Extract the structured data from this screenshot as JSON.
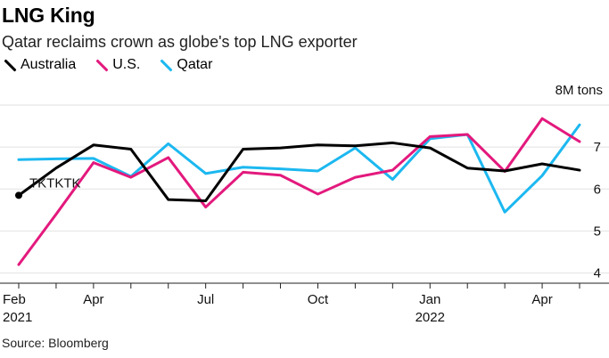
{
  "header": {
    "title": "LNG King",
    "subtitle": "Qatar reclaims crown as globe's top LNG exporter"
  },
  "footer": {
    "source": "Source: Bloomberg"
  },
  "chart_data": {
    "type": "line",
    "title": "LNG King",
    "subtitle": "Qatar reclaims crown as globe's top LNG exporter",
    "xlabel": "",
    "ylabel": "",
    "y_unit_label": "8M tons",
    "ylim": [
      3.8,
      8.0
    ],
    "yticks": [
      4,
      5,
      6,
      7
    ],
    "grid": "horizontal",
    "legend_position": "top-left",
    "x": [
      "2021-02",
      "2021-03",
      "2021-04",
      "2021-05",
      "2021-06",
      "2021-07",
      "2021-08",
      "2021-09",
      "2021-10",
      "2021-11",
      "2021-12",
      "2022-01",
      "2022-02",
      "2022-03",
      "2022-04",
      "2022-05"
    ],
    "xtick_labels": [
      {
        "x": "2021-02",
        "line1": "Feb",
        "line2": "2021"
      },
      {
        "x": "2021-04",
        "line1": "Apr",
        "line2": ""
      },
      {
        "x": "2021-07",
        "line1": "Jul",
        "line2": ""
      },
      {
        "x": "2021-10",
        "line1": "Oct",
        "line2": ""
      },
      {
        "x": "2022-01",
        "line1": "Jan",
        "line2": "2022"
      },
      {
        "x": "2022-04",
        "line1": "Apr",
        "line2": ""
      }
    ],
    "series": [
      {
        "name": "Australia",
        "color": "#000000",
        "start_marker": true,
        "x": [
          "2021-02",
          "2021-03",
          "2021-04",
          "2021-05",
          "2021-06",
          "2021-07",
          "2021-08",
          "2021-09",
          "2021-10",
          "2021-11",
          "2021-12",
          "2022-01",
          "2022-02",
          "2022-03",
          "2022-04",
          "2022-05"
        ],
        "values": [
          5.85,
          6.5,
          7.05,
          6.95,
          5.75,
          5.72,
          6.95,
          6.98,
          7.05,
          7.03,
          7.1,
          6.98,
          6.5,
          6.43,
          6.6,
          6.45
        ]
      },
      {
        "name": "U.S.",
        "color": "#e3197d",
        "x": [
          "2021-02",
          "2021-03",
          "2021-04",
          "2021-05",
          "2021-06",
          "2021-07",
          "2021-08",
          "2021-09",
          "2021-10",
          "2021-11",
          "2021-12",
          "2022-01",
          "2022-02",
          "2022-03",
          "2022-04",
          "2022-05"
        ],
        "values": [
          4.2,
          5.4,
          6.63,
          6.28,
          6.75,
          5.57,
          6.4,
          6.33,
          5.88,
          6.28,
          6.45,
          7.25,
          7.3,
          6.42,
          7.68,
          7.13
        ]
      },
      {
        "name": "Qatar",
        "color": "#1cb8f0",
        "x": [
          "2021-02",
          "2021-03",
          "2021-04",
          "2021-05",
          "2021-06",
          "2021-07",
          "2021-08",
          "2021-09",
          "2021-10",
          "2021-11",
          "2021-12",
          "2022-01",
          "2022-02",
          "2022-03",
          "2022-04",
          "2022-05"
        ],
        "values": [
          6.7,
          6.72,
          6.73,
          6.3,
          7.08,
          6.37,
          6.52,
          6.48,
          6.43,
          6.98,
          6.23,
          7.2,
          7.3,
          5.45,
          6.32,
          7.53
        ]
      }
    ],
    "annotations": [
      {
        "text": "TKTKTK",
        "x": "2021-02",
        "y": 5.85
      }
    ]
  }
}
